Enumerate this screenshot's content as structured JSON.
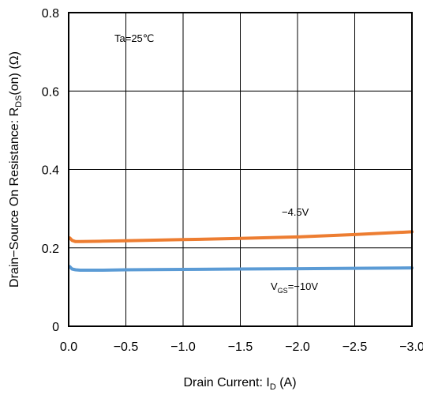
{
  "chart_data": {
    "type": "line",
    "xlabel": {
      "main": "Drain Current: I",
      "sub": "D",
      "unit": " (A)"
    },
    "ylabel": {
      "main": "Drain−Source On Resistance: R",
      "sub": "DS",
      "tail": "(on) (Ω)"
    },
    "xlim": [
      0,
      -3.0
    ],
    "ylim": [
      0,
      0.8
    ],
    "x_ticks": [
      0,
      -0.5,
      -1.0,
      -1.5,
      -2.0,
      -2.5,
      -3.0
    ],
    "x_tick_labels": [
      "0.0",
      "−0.5",
      "−1.0",
      "−1.5",
      "−2.0",
      "−2.5",
      "−3.0"
    ],
    "y_ticks": [
      0,
      0.2,
      0.4,
      0.6,
      0.8
    ],
    "y_tick_labels": [
      "0",
      "0.2",
      "0.4",
      "0.6",
      "0.8"
    ],
    "grid": true,
    "annotations": {
      "condition": "Ta=25℃",
      "label_45": "−4.5V",
      "label_10_prefix": "V",
      "label_10_sub": "GS",
      "label_10_value": "=−10V"
    },
    "series": [
      {
        "name": "−4.5V",
        "color": "#ED7D31",
        "x": [
          -0.01,
          -0.03,
          -0.06,
          -0.1,
          -0.3,
          -0.5,
          -1.0,
          -1.5,
          -2.0,
          -2.5,
          -3.0
        ],
        "y": [
          0.225,
          0.219,
          0.216,
          0.216,
          0.217,
          0.218,
          0.221,
          0.224,
          0.228,
          0.234,
          0.241
        ]
      },
      {
        "name": "V GS=−10V",
        "color": "#5B9BD5",
        "x": [
          -0.01,
          -0.03,
          -0.06,
          -0.1,
          -0.3,
          -0.5,
          -1.0,
          -1.5,
          -2.0,
          -2.5,
          -3.0
        ],
        "y": [
          0.152,
          0.146,
          0.144,
          0.143,
          0.143,
          0.144,
          0.145,
          0.146,
          0.147,
          0.148,
          0.149
        ]
      }
    ]
  }
}
